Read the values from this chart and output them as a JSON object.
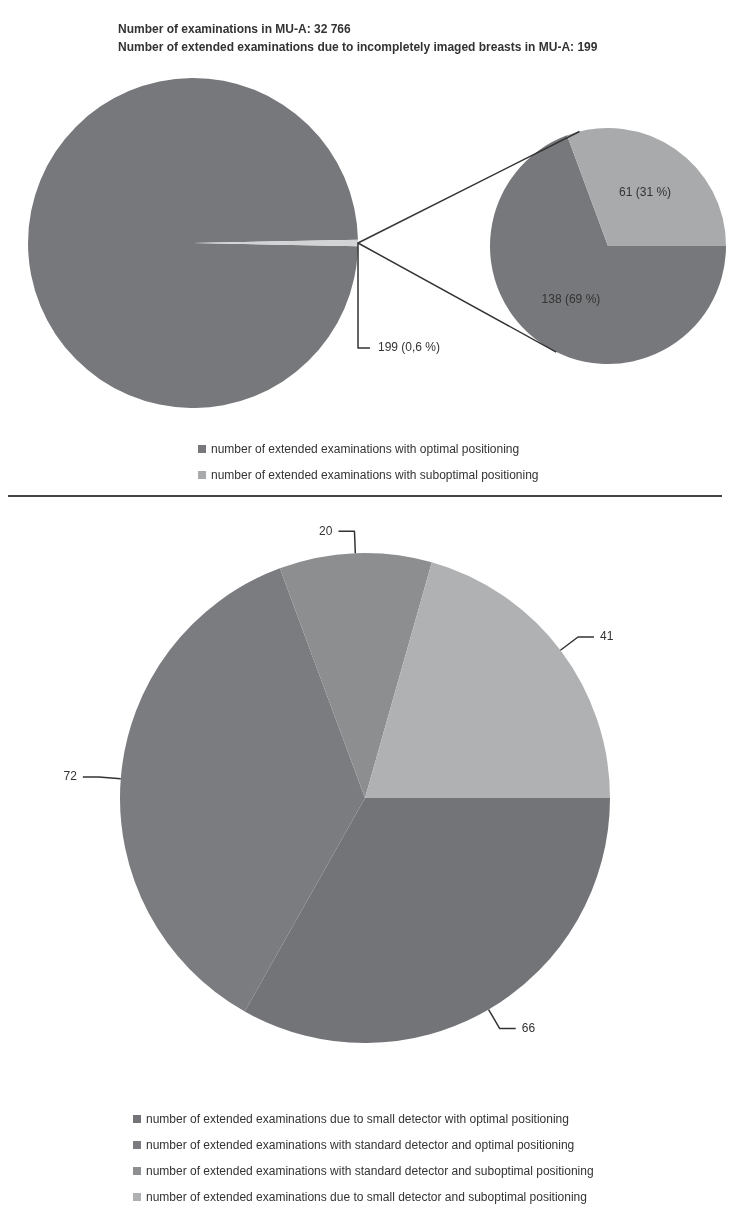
{
  "chart_data": [
    {
      "type": "pie",
      "title": "Number of examinations in MU-A: 32 766",
      "subtitle": "Number of extended examinations due to incompletely imaged breasts in MU-A: 199",
      "categories": [
        null,
        null
      ],
      "values": [
        32567,
        199
      ],
      "colors": [
        "#77787b",
        "#d2d3d5"
      ],
      "value_labels": [
        null,
        "199 (0,6 %)"
      ]
    },
    {
      "type": "pie",
      "categories": [
        "number of extended examinations with optimal positioning",
        "number of extended examinations with suboptimal positioning"
      ],
      "values": [
        138,
        61
      ],
      "colors": [
        "#77787b",
        "#a9aaac"
      ],
      "value_labels": [
        "138 (69 %)",
        "61 (31 %)"
      ],
      "legend": "bottom"
    },
    {
      "type": "pie",
      "categories": [
        "number of extended examinations due to small detector with optimal positioning",
        "number of extended examinations with standard detector and optimal positioning",
        "number of extended examinations with standard detector and suboptimal positioning",
        "number of extended examinations due to small detector and suboptimal positioning"
      ],
      "values": [
        66,
        72,
        20,
        41
      ],
      "colors": [
        "#737477",
        "#7b7c7f",
        "#8d8e90",
        "#b0b1b3"
      ],
      "data_labels": true,
      "legend": "bottom"
    }
  ]
}
